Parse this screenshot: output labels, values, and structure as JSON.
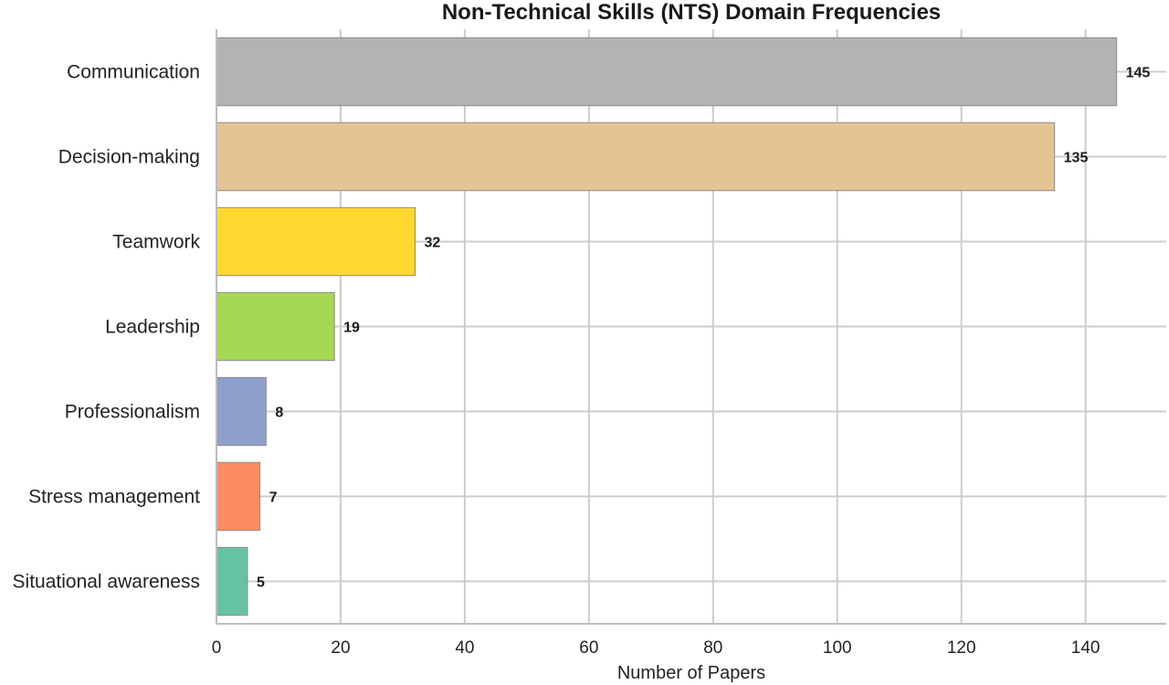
{
  "chart_data": {
    "type": "bar",
    "orientation": "horizontal",
    "title": "Non-Technical Skills (NTS) Domain Frequencies",
    "xlabel": "Number of Papers",
    "ylabel": "",
    "categories": [
      "Communication",
      "Decision-making",
      "Teamwork",
      "Leadership",
      "Professionalism",
      "Stress management",
      "Situational awareness"
    ],
    "values": [
      145,
      135,
      32,
      19,
      8,
      7,
      5
    ],
    "value_labels": [
      "145",
      "135",
      "32",
      "19",
      "8",
      "7",
      "5"
    ],
    "colors": [
      "#b3b3b3",
      "#e5c494",
      "#ffd92f",
      "#a6d854",
      "#8da0cb",
      "#fc8d62",
      "#66c2a5"
    ],
    "xlim": [
      0,
      153
    ],
    "xticks": [
      0,
      20,
      40,
      60,
      80,
      100,
      120,
      140
    ],
    "xtick_labels": [
      "0",
      "20",
      "40",
      "60",
      "80",
      "100",
      "120",
      "140"
    ],
    "grid": true,
    "legend": false
  }
}
